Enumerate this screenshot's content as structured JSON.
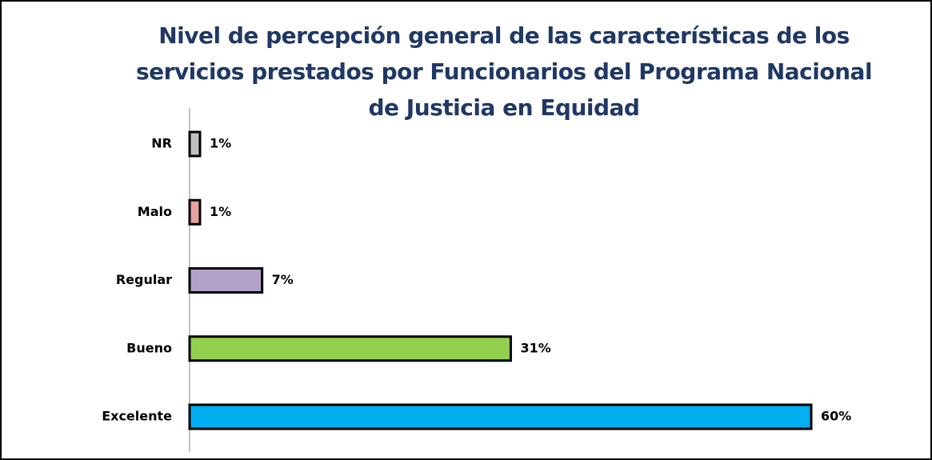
{
  "chart_data": {
    "type": "bar",
    "orientation": "horizontal",
    "title": "Nivel de percepción general de las características de los servicios prestados por Funcionarios del Programa Nacional de Justicia en Equidad",
    "categories": [
      "NR",
      "Malo",
      "Regular",
      "Bueno",
      "Excelente"
    ],
    "values": [
      1,
      1,
      7,
      31,
      60
    ],
    "value_labels": [
      "1%",
      "1%",
      "7%",
      "31%",
      "60%"
    ],
    "colors": [
      "#bfbfbf",
      "#e6a0a0",
      "#b3a2c7",
      "#92d050",
      "#00b0f0"
    ]
  }
}
